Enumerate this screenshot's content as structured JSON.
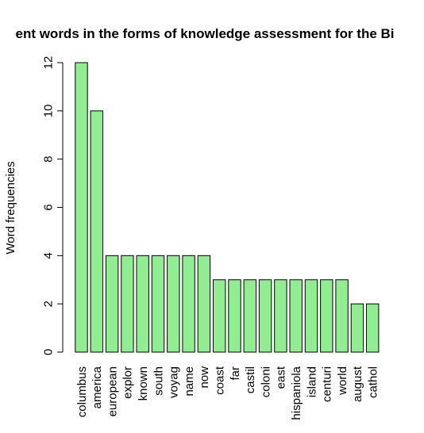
{
  "chart_data": {
    "type": "bar",
    "title": "ent words in the forms of knowledge assessment for the Bi",
    "xlabel": "",
    "ylabel": "Word frequencies",
    "ylim": [
      0,
      12
    ],
    "yticks": [
      0,
      2,
      4,
      6,
      8,
      10,
      12
    ],
    "bar_color": "#90EE90",
    "categories": [
      "columbus",
      "america",
      "european",
      "explor",
      "known",
      "south",
      "voyag",
      "name",
      "now",
      "coast",
      "far",
      "castil",
      "coloni",
      "east",
      "hispaniola",
      "island",
      "centuri",
      "world",
      "august",
      "cathol"
    ],
    "values": [
      12,
      10,
      4,
      4,
      4,
      4,
      4,
      4,
      4,
      3,
      3,
      3,
      3,
      3,
      3,
      3,
      3,
      3,
      2,
      2
    ]
  }
}
